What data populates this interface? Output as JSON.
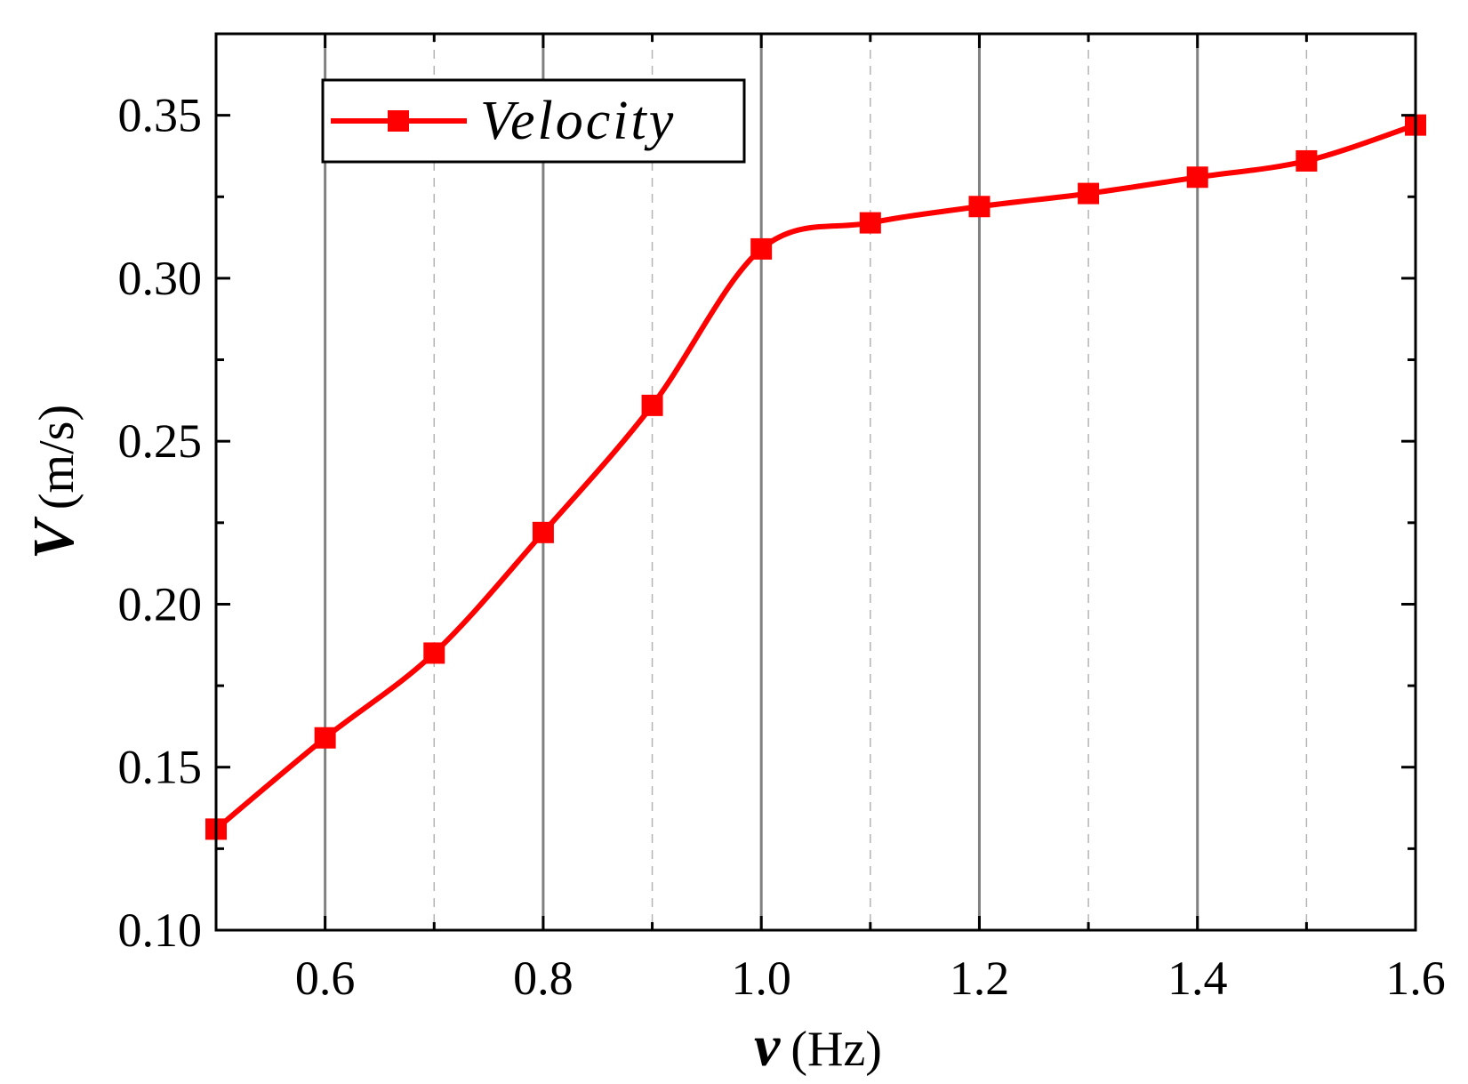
{
  "chart_data": {
    "type": "line",
    "title": "",
    "xlabel": {
      "var": "v",
      "unit": "(Hz)"
    },
    "ylabel": {
      "var": "V",
      "unit": "(m/s)"
    },
    "xlim": [
      0.5,
      1.6
    ],
    "ylim": [
      0.1,
      0.375
    ],
    "x_ticks": [
      0.6,
      0.8,
      1.0,
      1.2,
      1.4,
      1.6
    ],
    "x_tick_labels": [
      "0.6",
      "0.8",
      "1.0",
      "1.2",
      "1.4",
      "1.6"
    ],
    "y_ticks": [
      0.1,
      0.15,
      0.2,
      0.25,
      0.3,
      0.35
    ],
    "y_tick_labels": [
      "0.10",
      "0.15",
      "0.20",
      "0.25",
      "0.30",
      "0.35"
    ],
    "grid": {
      "major_x": [
        0.6,
        0.8,
        1.0,
        1.2,
        1.4
      ],
      "minor_x": [
        0.7,
        0.9,
        1.1,
        1.3,
        1.5
      ]
    },
    "legend": {
      "position": "top-left",
      "entries": [
        "Velocity"
      ]
    },
    "series": [
      {
        "name": "Velocity",
        "color": "#ff0000",
        "marker": "square",
        "x": [
          0.5,
          0.6,
          0.7,
          0.8,
          0.9,
          1.0,
          1.1,
          1.2,
          1.3,
          1.4,
          1.5,
          1.6
        ],
        "y": [
          0.131,
          0.159,
          0.185,
          0.222,
          0.261,
          0.309,
          0.317,
          0.322,
          0.326,
          0.331,
          0.336,
          0.347
        ]
      }
    ]
  }
}
